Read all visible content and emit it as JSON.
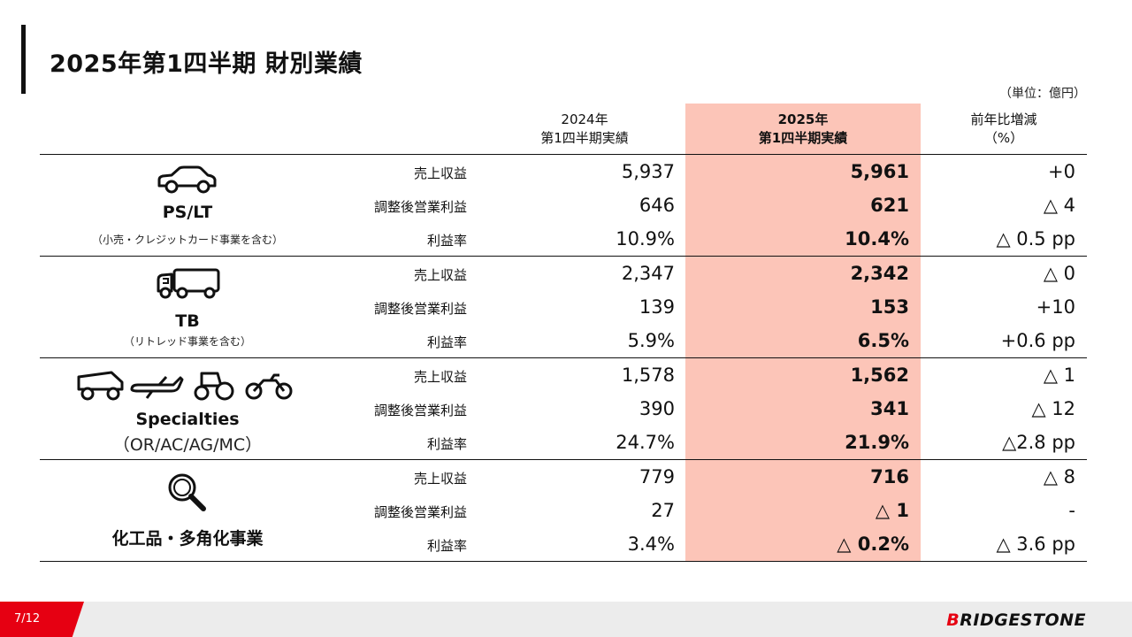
{
  "title": "2025年第1四半期 財別業績",
  "unit": "（単位：億円）",
  "headers": {
    "y2024_line1": "2024年",
    "y2024_line2": "第1四半期実績",
    "y2025_line1": "2025年",
    "y2025_line2": "第1四半期実績",
    "diff_line1": "前年比増減",
    "diff_line2": "（%）"
  },
  "row_labels": {
    "sales": "売上収益",
    "op": "調整後営業利益",
    "margin": "利益率"
  },
  "segments": [
    {
      "name": "PS/LT",
      "sub": "（小売・クレジットカード事業を含む）",
      "icon": "car-icon",
      "rows": [
        {
          "v2024": "5,937",
          "v2025": "5,961",
          "diff": "+0"
        },
        {
          "v2024": "646",
          "v2025": "621",
          "diff": "△ 4"
        },
        {
          "v2024": "10.9%",
          "v2025": "10.4%",
          "diff": "△ 0.5 pp"
        }
      ]
    },
    {
      "name": "TB",
      "sub": "（リトレッド事業を含む）",
      "icon": "truck-icon",
      "rows": [
        {
          "v2024": "2,347",
          "v2025": "2,342",
          "diff": "△ 0"
        },
        {
          "v2024": "139",
          "v2025": "153",
          "diff": "+10"
        },
        {
          "v2024": "5.9%",
          "v2025": "6.5%",
          "diff": "+0.6 pp"
        }
      ]
    },
    {
      "name": "Specialties",
      "sub": "（OR/AC/AG/MC）",
      "icon": "specialties-icons",
      "rows": [
        {
          "v2024": "1,578",
          "v2025": "1,562",
          "diff": "△ 1"
        },
        {
          "v2024": "390",
          "v2025": "341",
          "diff": "△ 12"
        },
        {
          "v2024": "24.7%",
          "v2025": "21.9%",
          "diff": "△2.8 pp"
        }
      ]
    },
    {
      "name": "化工品・多角化事業",
      "sub": "",
      "icon": "magnifier-icon",
      "rows": [
        {
          "v2024": "779",
          "v2025": "716",
          "diff": "△ 8"
        },
        {
          "v2024": "27",
          "v2025": "△ 1",
          "diff": "-"
        },
        {
          "v2024": "3.4%",
          "v2025": "△ 0.2%",
          "diff": "△ 3.6 pp"
        }
      ]
    }
  ],
  "footer": {
    "page": "7/12",
    "logo_prefix": "B",
    "logo_rest": "RIDGESTONE"
  },
  "colors": {
    "highlight": "#fcc5b8",
    "accent": "#e60012"
  }
}
